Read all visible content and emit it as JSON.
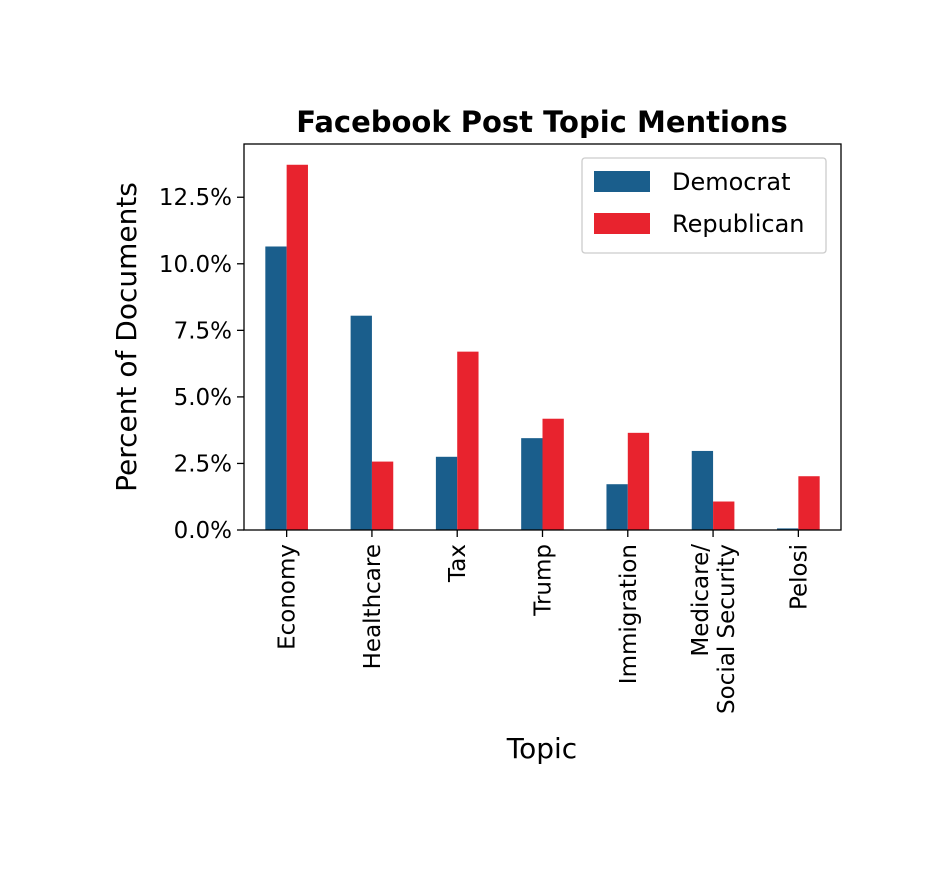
{
  "chart_data": {
    "type": "bar",
    "title": "Facebook Post Topic Mentions",
    "xlabel": "Topic",
    "ylabel": "Percent of Documents",
    "categories": [
      "Economy",
      "Healthcare",
      "Tax",
      "Trump",
      "Immigration",
      "Medicare/\nSocial Security",
      "Pelosi"
    ],
    "series": [
      {
        "name": "Democrat",
        "color": "#1a5e8c",
        "values": [
          10.65,
          8.05,
          2.75,
          3.45,
          1.72,
          2.97,
          0.06
        ]
      },
      {
        "name": "Republican",
        "color": "#e8232e",
        "values": [
          13.72,
          2.57,
          6.7,
          4.18,
          3.65,
          1.07,
          2.02
        ]
      }
    ],
    "ylim": [
      0,
      14.5
    ],
    "yticks": [
      0,
      2.5,
      5.0,
      7.5,
      10.0,
      12.5
    ],
    "ytick_labels": [
      "0.0%",
      "2.5%",
      "5.0%",
      "7.5%",
      "10.0%",
      "12.5%"
    ],
    "grid": false,
    "legend_position": "top-right"
  }
}
